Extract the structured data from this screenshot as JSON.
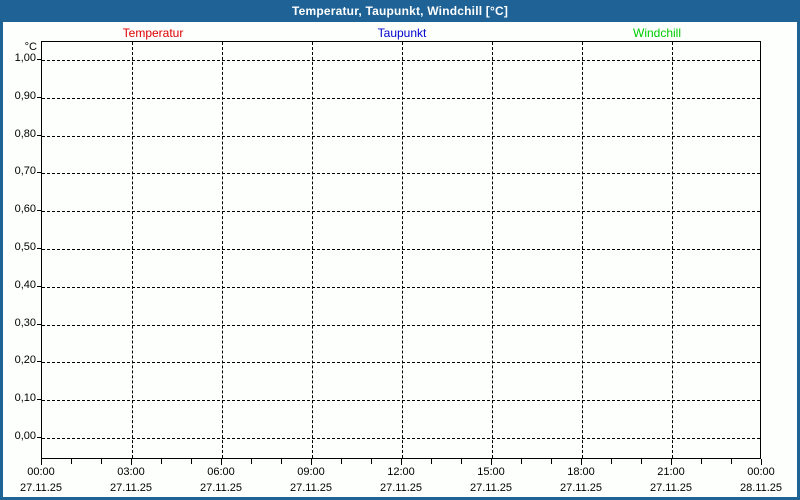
{
  "window": {
    "title": "Temperatur, Taupunkt, Windchill [°C]",
    "titlebar_color": "#1e6296",
    "background": "#fdfffd"
  },
  "legend": {
    "items": [
      {
        "label": "Temperatur",
        "color": "#dd0000"
      },
      {
        "label": "Taupunkt",
        "color": "#0000cd"
      },
      {
        "label": "Windchill",
        "color": "#00cc00"
      }
    ]
  },
  "axis": {
    "unit_label": "°C"
  },
  "chart_data": {
    "type": "line",
    "title": "Temperatur, Taupunkt, Windchill [°C]",
    "series": [
      {
        "name": "Temperatur",
        "color": "#dd0000",
        "values": []
      },
      {
        "name": "Taupunkt",
        "color": "#0000cd",
        "values": []
      },
      {
        "name": "Windchill",
        "color": "#00cc00",
        "values": []
      }
    ],
    "ylabel": "°C",
    "ylim": [
      0.0,
      1.0
    ],
    "y_tick_step": 0.1,
    "y_ticks": [
      "1,00",
      "0,90",
      "0,80",
      "0,70",
      "0,60",
      "0,50",
      "0,40",
      "0,30",
      "0,20",
      "0,10",
      "0,00"
    ],
    "x_ticks": [
      {
        "time": "00:00",
        "date": "27.11.25"
      },
      {
        "time": "03:00",
        "date": "27.11.25"
      },
      {
        "time": "06:00",
        "date": "27.11.25"
      },
      {
        "time": "09:00",
        "date": "27.11.25"
      },
      {
        "time": "12:00",
        "date": "27.11.25"
      },
      {
        "time": "15:00",
        "date": "27.11.25"
      },
      {
        "time": "18:00",
        "date": "27.11.25"
      },
      {
        "time": "21:00",
        "date": "27.11.25"
      },
      {
        "time": "00:00",
        "date": "28.11.25"
      }
    ],
    "x_minor_ticks_per_major": 3,
    "grid": "dashed",
    "legend_position": "top"
  }
}
